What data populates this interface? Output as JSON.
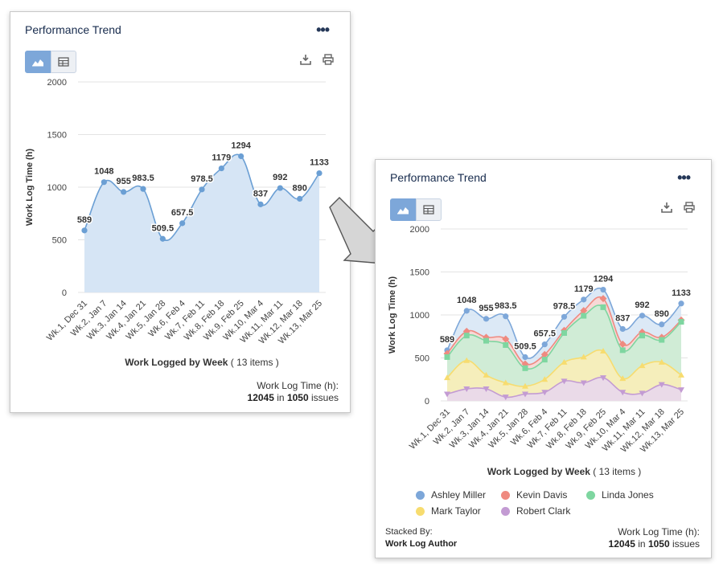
{
  "panels": [
    {
      "title": "Performance Trend",
      "stacked_by_label": "",
      "stacked_by_value": ""
    },
    {
      "title": "Performance Trend",
      "stacked_by_label": "Stacked By:",
      "stacked_by_value": "Work Log Author"
    }
  ],
  "summary": {
    "label": "Work Log Time (h):",
    "total": "12045",
    "in_word": "in",
    "issues": "1050",
    "issues_word": "issues"
  },
  "xaxis_title": {
    "bold": "Work Logged by Week",
    "items": "( 13 items )"
  },
  "colors": {
    "total_line": "#6b9fd4",
    "total_fill": "#d6e5f5",
    "ashley": "#7da7d9",
    "kevin": "#ef8a80",
    "linda": "#7ed6a0",
    "mark": "#f7dc6f",
    "robert": "#c39bd3"
  },
  "chart_data": [
    {
      "type": "area",
      "title": "Performance Trend",
      "xlabel": "Work Logged by Week ( 13 items )",
      "ylabel": "Work Log Time (h)",
      "ylim": [
        0,
        2000
      ],
      "yticks": [
        0,
        500,
        1000,
        1500,
        2000
      ],
      "categories": [
        "Wk.1, Dec 31",
        "Wk.2, Jan 7",
        "Wk.3, Jan 14",
        "Wk.4, Jan 21",
        "Wk.5, Jan 28",
        "Wk.6, Feb 4",
        "Wk.7, Feb 11",
        "Wk.8, Feb 18",
        "Wk.9, Feb 25",
        "Wk.10, Mar 4",
        "Wk.11, Mar 11",
        "Wk.12, Mar 18",
        "Wk.13, Mar 25"
      ],
      "series": [
        {
          "name": "Work Log Time (h)",
          "values": [
            589,
            1048,
            955,
            983.5,
            509.5,
            657.5,
            978.5,
            1179,
            1294,
            837,
            992,
            890,
            1133
          ],
          "labels": [
            "589",
            "1048",
            "955",
            "983.5",
            "509.5",
            "657.5",
            "978.5",
            "1179",
            "1294",
            "837",
            "992",
            "890",
            "1133"
          ]
        }
      ]
    },
    {
      "type": "area",
      "stacked_by": "Work Log Author",
      "title": "Performance Trend",
      "xlabel": "Work Logged by Week ( 13 items )",
      "ylabel": "Work Log Time (h)",
      "ylim": [
        0,
        2000
      ],
      "yticks": [
        0,
        500,
        1000,
        1500,
        2000
      ],
      "categories": [
        "Wk.1, Dec 31",
        "Wk.2, Jan 7",
        "Wk.3, Jan 14",
        "Wk.4, Jan 21",
        "Wk.5, Jan 28",
        "Wk.6, Feb 4",
        "Wk.7, Feb 11",
        "Wk.8, Feb 18",
        "Wk.9, Feb 25",
        "Wk.10, Mar 4",
        "Wk.11, Mar 11",
        "Wk.12, Mar 18",
        "Wk.13, Mar 25"
      ],
      "series": [
        {
          "name": "Ashley Miller",
          "values": [
            589,
            1048,
            955,
            983.5,
            509.5,
            657.5,
            978.5,
            1179,
            1294,
            837,
            992,
            890,
            1133
          ],
          "labels": [
            "589",
            "1048",
            "955",
            "983.5",
            "509.5",
            "657.5",
            "978.5",
            "1179",
            "1294",
            "837",
            "992",
            "890",
            "1133"
          ]
        },
        {
          "name": "Kevin Davis",
          "values": [
            550,
            810,
            740,
            720,
            430,
            540,
            820,
            1050,
            1190,
            660,
            800,
            740,
            940
          ]
        },
        {
          "name": "Linda Jones",
          "values": [
            510,
            760,
            700,
            650,
            380,
            480,
            790,
            990,
            1090,
            590,
            760,
            710,
            920
          ]
        },
        {
          "name": "Mark Taylor",
          "values": [
            270,
            470,
            300,
            210,
            170,
            250,
            450,
            510,
            580,
            260,
            410,
            450,
            300
          ]
        },
        {
          "name": "Robert Clark",
          "values": [
            80,
            140,
            140,
            45,
            80,
            100,
            230,
            210,
            270,
            100,
            90,
            190,
            130
          ]
        }
      ]
    }
  ]
}
